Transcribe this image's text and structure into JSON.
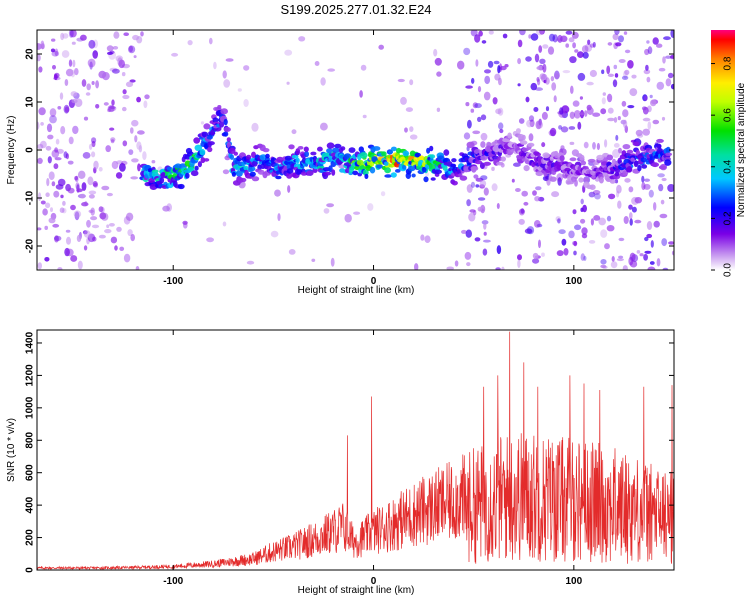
{
  "title": "S199.2025.277.01.32.E24",
  "chart_data": [
    {
      "type": "heatmap",
      "name": "spectrogram",
      "xlabel": "Height of straight line (km)",
      "ylabel": "Frequency (Hz)",
      "xlim": [
        -168,
        150
      ],
      "ylim": [
        -25,
        25
      ],
      "xticks": [
        -100,
        0,
        100
      ],
      "yticks": [
        -20,
        -10,
        0,
        10,
        20
      ],
      "grid": false,
      "colorbar": {
        "label": "Normalized spectral amplitude",
        "range": [
          0,
          0.93
        ],
        "ticks": [
          0.0,
          0.2,
          0.4,
          0.6,
          0.8
        ]
      },
      "ridge_x": [
        -115,
        -105,
        -98,
        -92,
        -88,
        -84,
        -80,
        -75,
        -70,
        -62,
        -55,
        -48,
        -40,
        -30,
        -20,
        -10,
        0,
        10,
        20,
        30,
        40,
        50,
        60,
        70,
        80,
        90,
        100,
        110,
        120,
        130,
        140,
        148
      ],
      "ridge_y": [
        -5.0,
        -5.5,
        -5.0,
        -3.5,
        -1.0,
        1.0,
        4.0,
        7.0,
        -4.0,
        -3.5,
        -2.0,
        -4.5,
        -2.0,
        -3.5,
        -1.5,
        -3.0,
        -2.5,
        -2.0,
        -2.5,
        -3.0,
        -4.0,
        -1.5,
        -1.0,
        2.0,
        -2.5,
        -3.0,
        -4.0,
        -4.5,
        -3.5,
        -2.0,
        -1.5,
        -1.0
      ],
      "ridge_amp": [
        0.4,
        0.45,
        0.5,
        0.55,
        0.5,
        0.35,
        0.3,
        0.3,
        0.4,
        0.35,
        0.3,
        0.35,
        0.35,
        0.4,
        0.45,
        0.55,
        0.75,
        0.85,
        0.75,
        0.55,
        0.35,
        0.25,
        0.2,
        0.12,
        0.18,
        0.18,
        0.15,
        0.15,
        0.2,
        0.3,
        0.3,
        0.3
      ]
    },
    {
      "type": "line",
      "name": "snr",
      "xlabel": "Height of straight line (km)",
      "ylabel": "SNR (10 * v/v)",
      "xlim": [
        -168,
        150
      ],
      "ylim": [
        0,
        1480
      ],
      "xticks": [
        -100,
        0,
        100
      ],
      "yticks": [
        0,
        200,
        400,
        600,
        800,
        1000,
        1200,
        1400
      ],
      "color": "#e32b2b",
      "grid": false,
      "envelope_x": [
        -168,
        -140,
        -120,
        -100,
        -80,
        -60,
        -50,
        -40,
        -30,
        -20,
        -15,
        -10,
        -5,
        0,
        10,
        20,
        30,
        40,
        50,
        60,
        70,
        80,
        90,
        100,
        110,
        120,
        130,
        140,
        150
      ],
      "envelope_y": [
        20,
        20,
        25,
        35,
        60,
        110,
        180,
        230,
        300,
        380,
        430,
        280,
        320,
        380,
        460,
        550,
        620,
        680,
        760,
        820,
        870,
        860,
        840,
        820,
        800,
        760,
        720,
        650,
        620
      ],
      "peaks": [
        {
          "x": -13,
          "y": 830
        },
        {
          "x": -1,
          "y": 1070
        },
        {
          "x": 55,
          "y": 1130
        },
        {
          "x": 62,
          "y": 1200
        },
        {
          "x": 68,
          "y": 1470
        },
        {
          "x": 75,
          "y": 1280
        },
        {
          "x": 82,
          "y": 1130
        },
        {
          "x": 98,
          "y": 1200
        },
        {
          "x": 105,
          "y": 1150
        },
        {
          "x": 113,
          "y": 1110
        },
        {
          "x": 135,
          "y": 1130
        },
        {
          "x": 149,
          "y": 1140
        }
      ]
    }
  ]
}
